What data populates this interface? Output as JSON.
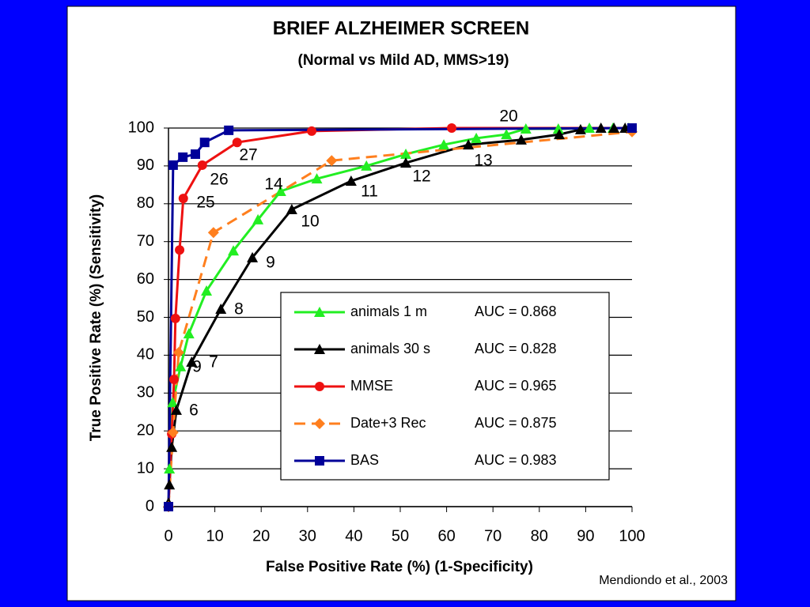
{
  "chart_data": {
    "type": "line",
    "title": "BRIEF ALZHEIMER SCREEN",
    "subtitle": "(Normal vs Mild AD, MMS>19)",
    "x_label": "False Positive Rate (%)  (1-Specificity)",
    "y_label": "True Positive Rate  (%)  (Sensitivity)",
    "source": "Mendiondo et al., 2003",
    "xlim": [
      0,
      100
    ],
    "ylim": [
      0,
      100
    ],
    "xticks": [
      0,
      10,
      20,
      30,
      40,
      50,
      60,
      70,
      80,
      90,
      100
    ],
    "yticks": [
      0,
      10,
      20,
      30,
      40,
      50,
      60,
      70,
      80,
      90,
      100
    ],
    "grid": true,
    "annotations": [
      "20",
      "27",
      "26",
      "14",
      "25",
      "11",
      "12",
      "13",
      "10",
      "9",
      "8",
      "7",
      "9",
      "6"
    ],
    "series": [
      {
        "name": "animals 1 m",
        "label": "AUC = 0.868",
        "color": "#22ee22",
        "marker": "triangle",
        "dashed": false,
        "x": [
          0.2,
          0.9,
          2.6,
          4.4,
          8.2,
          14,
          19.3,
          24.2,
          32,
          42.7,
          51.2,
          59.4,
          66.4,
          72.9,
          77.1,
          84.1,
          90.8,
          95.9,
          99.3
        ],
        "values": [
          10,
          27.5,
          37,
          45.7,
          57,
          67.6,
          75.8,
          83.3,
          86.6,
          90,
          93.1,
          95.6,
          97.3,
          98.3,
          99.8,
          99.8,
          100,
          100,
          100
        ]
      },
      {
        "name": "animals 30 s",
        "label": "AUC = 0.828",
        "color": "#000000",
        "marker": "triangle",
        "dashed": false,
        "x": [
          0,
          0.2,
          0.7,
          1.7,
          5,
          11.3,
          18.1,
          26.6,
          39.4,
          51.2,
          64.7,
          76.1,
          84.3,
          88.9,
          93.3,
          96.1,
          98.5
        ],
        "values": [
          1,
          5.8,
          15.7,
          25.5,
          38.2,
          52.2,
          65.8,
          78.5,
          86,
          90.8,
          95.6,
          96.9,
          98.3,
          99.6,
          100,
          100,
          100
        ]
      },
      {
        "name": "MMSE",
        "label": "AUC = 0.965",
        "color": "#ee1111",
        "marker": "circle",
        "dashed": false,
        "x": [
          0,
          0.7,
          1.2,
          1.5,
          2.4,
          3.2,
          7.3,
          14.8,
          30.9,
          61.1,
          100
        ],
        "values": [
          0,
          19.2,
          33.6,
          49.7,
          67.8,
          81.4,
          90.2,
          96.2,
          99.2,
          100,
          100
        ]
      },
      {
        "name": "Date+3 Rec",
        "label": "AUC = 0.875",
        "color": "#ff7f1e",
        "marker": "diamond",
        "dashed": true,
        "x": [
          0,
          1,
          2.2,
          9.7,
          35.2,
          100
        ],
        "values": [
          0,
          19.6,
          40.7,
          72.4,
          91.4,
          99
        ]
      },
      {
        "name": "BAS",
        "label": "AUC = 0.983",
        "color": "#000099",
        "marker": "square",
        "dashed": false,
        "x": [
          0,
          1,
          3.1,
          5.8,
          7.8,
          13,
          100
        ],
        "values": [
          0,
          90.2,
          92.3,
          93.1,
          96.2,
          99.4,
          100
        ]
      }
    ]
  }
}
